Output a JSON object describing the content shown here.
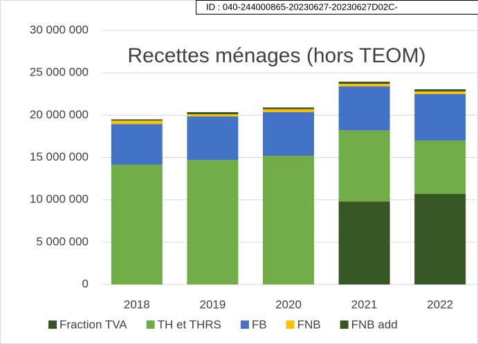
{
  "chart_data": {
    "type": "bar",
    "stacked": true,
    "title": "Recettes ménages (hors TEOM)",
    "annotation": "ID : 040-244000865-20230627-20230627D02C-",
    "categories": [
      "2018",
      "2019",
      "2020",
      "2021",
      "2022"
    ],
    "series": [
      {
        "name": "Fraction TVA",
        "color": "#375623",
        "values": [
          null,
          null,
          null,
          9800000,
          10700000
        ]
      },
      {
        "name": "TH et THRS",
        "color": "#70ad47",
        "values": [
          14150000,
          14700000,
          15200000,
          8400000,
          6300000
        ]
      },
      {
        "name": "FB",
        "color": "#4472c4",
        "values": [
          4800000,
          5150000,
          5150000,
          5200000,
          5500000
        ]
      },
      {
        "name": "FNB",
        "color": "#ffc000",
        "values": [
          400000,
          250000,
          350000,
          300000,
          300000
        ]
      },
      {
        "name": "FNB add",
        "color": "#375623",
        "values": [
          150000,
          250000,
          200000,
          250000,
          250000
        ]
      }
    ],
    "ylim": [
      0,
      30000000
    ],
    "yticks": [
      0,
      {
        "value": 5000000,
        "label": "5 000 000"
      },
      {
        "value": 10000000,
        "label": "10 000 000"
      },
      {
        "value": 15000000,
        "label": "15 000 000"
      },
      {
        "value": 20000000,
        "label": "20 000 000"
      },
      {
        "value": 25000000,
        "label": "25 000 000"
      },
      {
        "value": 30000000,
        "label": "30 000 000"
      }
    ],
    "grid": true,
    "legend": "bottom"
  }
}
